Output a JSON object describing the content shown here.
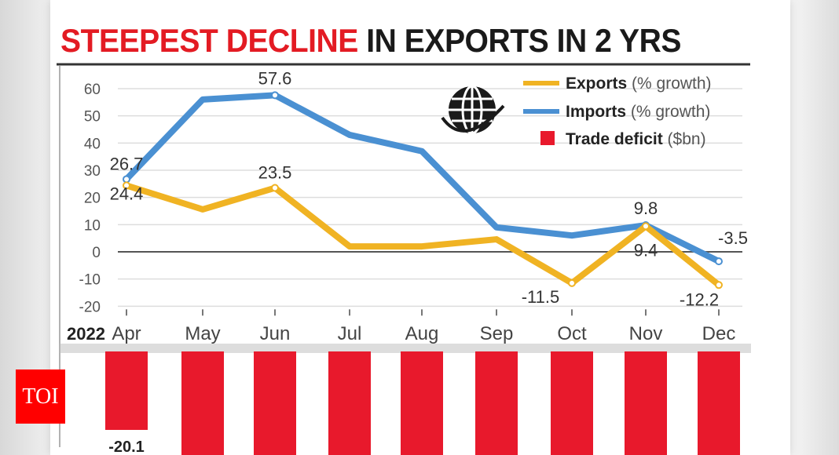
{
  "title": {
    "part1": "STEEPEST DECLINE",
    "part2": "IN EXPORTS IN 2 YRS"
  },
  "logo": "TOI",
  "chart_data": {
    "type": "line",
    "title": "STEEPEST DECLINE IN EXPORTS IN 2 YRS",
    "year_label": "2022",
    "categories": [
      "Apr",
      "May",
      "Jun",
      "Jul",
      "Aug",
      "Sep",
      "Oct",
      "Nov",
      "Dec"
    ],
    "ylim": [
      -20,
      60
    ],
    "yticks": [
      60,
      50,
      40,
      30,
      20,
      10,
      0,
      -10,
      -20
    ],
    "grid": true,
    "legend_position": "top-right",
    "series": [
      {
        "name": "Exports",
        "unit": "(% growth)",
        "color": "#f0b323",
        "values": [
          24.4,
          15.6,
          23.5,
          2,
          2,
          4.6,
          -11.5,
          9.4,
          -12.2
        ],
        "labels": [
          "24.4",
          null,
          "23.5",
          null,
          null,
          null,
          "-11.5",
          "9.4",
          "-12.2"
        ]
      },
      {
        "name": "Imports",
        "unit": "(% growth)",
        "color": "#4a90d2",
        "values": [
          26.7,
          56,
          57.6,
          43,
          37,
          9,
          6,
          9.8,
          -3.5
        ],
        "labels": [
          "26.7",
          null,
          "57.6",
          null,
          null,
          null,
          null,
          "9.8",
          "-3.5"
        ]
      }
    ],
    "bars": {
      "name": "Trade deficit",
      "unit": "($bn)",
      "color": "#e8192c",
      "values": [
        -20.1,
        null,
        null,
        null,
        null,
        null,
        null,
        null,
        null
      ],
      "labels": [
        "-20.1",
        null,
        null,
        null,
        null,
        null,
        null,
        null,
        null
      ]
    }
  }
}
